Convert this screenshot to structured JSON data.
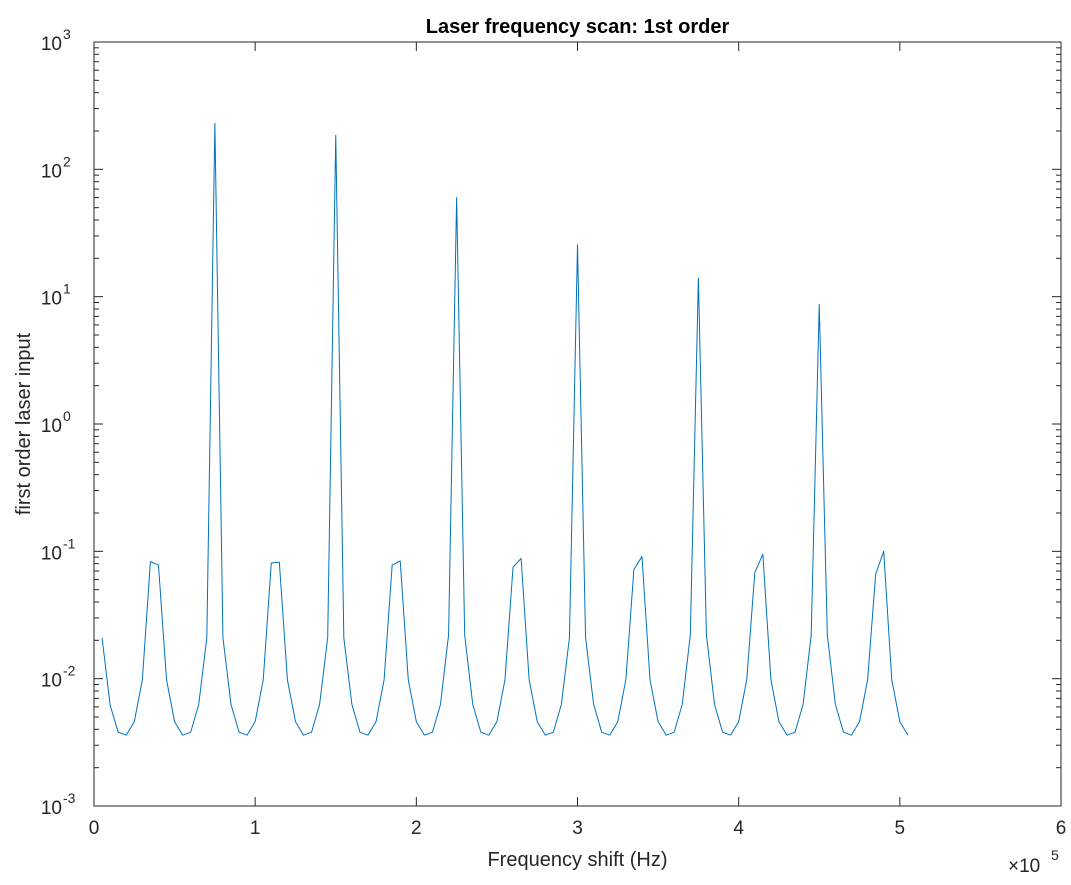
{
  "chart_data": {
    "type": "line",
    "title": "Laser frequency scan: 1st order",
    "xlabel": "Frequency shift (Hz)",
    "ylabel": "first order laser input",
    "x_multiplier": "×10",
    "x_multiplier_exponent": "5",
    "xlim": [
      0,
      600000
    ],
    "ylim": [
      0.001,
      1000
    ],
    "yscale": "log",
    "grid": false,
    "legend": "none",
    "line_color": "#0072BD",
    "x_ticks": [
      {
        "value": 0,
        "label": "0"
      },
      {
        "value": 100000,
        "label": "1"
      },
      {
        "value": 200000,
        "label": "2"
      },
      {
        "value": 300000,
        "label": "3"
      },
      {
        "value": 400000,
        "label": "4"
      },
      {
        "value": 500000,
        "label": "5"
      },
      {
        "value": 600000,
        "label": "6"
      }
    ],
    "y_ticks": [
      {
        "value": 0.001,
        "base": "10",
        "exp": "-3"
      },
      {
        "value": 0.01,
        "base": "10",
        "exp": "-2"
      },
      {
        "value": 0.1,
        "base": "10",
        "exp": "-1"
      },
      {
        "value": 1,
        "base": "10",
        "exp": "0"
      },
      {
        "value": 10,
        "base": "10",
        "exp": "1"
      },
      {
        "value": 100,
        "base": "10",
        "exp": "2"
      },
      {
        "value": 1000,
        "base": "10",
        "exp": "3"
      }
    ],
    "series": [
      {
        "x": [
          5000,
          10000,
          15000,
          20000,
          25000,
          30000,
          35000,
          40000,
          45000,
          50000,
          55000,
          60000,
          65000,
          70000,
          75000,
          80000,
          85000,
          90000,
          95000,
          100000,
          105000,
          110000,
          115000,
          120000,
          125000,
          130000,
          135000,
          140000,
          145000,
          150000,
          155000,
          160000,
          165000,
          170000,
          175000,
          180000,
          185000,
          190000,
          195000,
          200000,
          205000,
          210000,
          215000,
          220000,
          225000,
          230000,
          235000,
          240000,
          245000,
          250000,
          255000,
          260000,
          265000,
          270000,
          275000,
          280000,
          285000,
          290000,
          295000,
          300000,
          305000,
          310000,
          315000,
          320000,
          325000,
          330000,
          335000,
          340000,
          345000,
          350000,
          355000,
          360000,
          365000,
          370000,
          375000,
          380000,
          385000,
          390000,
          395000,
          400000,
          405000,
          410000,
          415000,
          420000,
          425000,
          430000,
          435000,
          440000,
          445000,
          450000,
          455000,
          460000,
          465000,
          470000,
          475000,
          480000,
          485000,
          490000,
          495000,
          500000,
          505000
        ],
        "y": [
          0.021,
          0.0062,
          0.0038,
          0.0036,
          0.0046,
          0.0098,
          0.083,
          0.078,
          0.0098,
          0.0046,
          0.0036,
          0.0038,
          0.0063,
          0.021,
          230,
          0.021,
          0.0063,
          0.0038,
          0.0036,
          0.0046,
          0.0098,
          0.081,
          0.082,
          0.0098,
          0.0046,
          0.0036,
          0.0038,
          0.0063,
          0.021,
          185,
          0.021,
          0.0063,
          0.0038,
          0.0036,
          0.0046,
          0.0098,
          0.078,
          0.084,
          0.0098,
          0.0046,
          0.0036,
          0.0038,
          0.0063,
          0.022,
          60,
          0.022,
          0.0063,
          0.0038,
          0.0036,
          0.0046,
          0.0098,
          0.075,
          0.088,
          0.0098,
          0.0046,
          0.0036,
          0.0038,
          0.0063,
          0.021,
          25.5,
          0.021,
          0.0063,
          0.0038,
          0.0036,
          0.0046,
          0.0098,
          0.072,
          0.091,
          0.0098,
          0.0046,
          0.0036,
          0.0038,
          0.0063,
          0.022,
          14,
          0.022,
          0.0063,
          0.0038,
          0.0036,
          0.0046,
          0.0098,
          0.068,
          0.095,
          0.0098,
          0.0046,
          0.0036,
          0.0038,
          0.0063,
          0.022,
          8.7,
          0.022,
          0.0063,
          0.0038,
          0.0036,
          0.0046,
          0.0098,
          0.066,
          0.1,
          0.0098,
          0.0046,
          0.0036
        ]
      }
    ]
  }
}
